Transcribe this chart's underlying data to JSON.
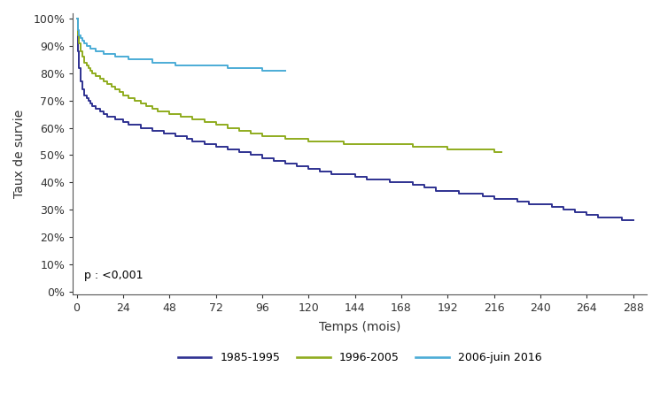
{
  "title": "",
  "xlabel": "Temps (mois)",
  "ylabel": "Taux de survie",
  "xlim": [
    -2,
    295
  ],
  "ylim": [
    -0.01,
    1.02
  ],
  "xticks": [
    0,
    24,
    48,
    72,
    96,
    120,
    144,
    168,
    192,
    216,
    240,
    264,
    288
  ],
  "yticks": [
    0.0,
    0.1,
    0.2,
    0.3,
    0.4,
    0.5,
    0.6,
    0.7,
    0.8,
    0.9,
    1.0
  ],
  "p_text": "p : <0,001",
  "background_color": "#ffffff",
  "series": {
    "1985-1995": {
      "color": "#2e3191",
      "linewidth": 1.4,
      "times": [
        0,
        0.5,
        1,
        2,
        3,
        4,
        5,
        6,
        7,
        8,
        9,
        10,
        11,
        12,
        14,
        16,
        18,
        20,
        22,
        24,
        27,
        30,
        33,
        36,
        39,
        42,
        45,
        48,
        51,
        54,
        57,
        60,
        66,
        72,
        78,
        84,
        90,
        96,
        102,
        108,
        114,
        120,
        126,
        132,
        138,
        144,
        150,
        156,
        162,
        168,
        174,
        180,
        186,
        192,
        198,
        204,
        210,
        216,
        222,
        228,
        234,
        240,
        246,
        252,
        258,
        264,
        270,
        276,
        282,
        288
      ],
      "survival": [
        1.0,
        0.88,
        0.82,
        0.77,
        0.74,
        0.72,
        0.71,
        0.7,
        0.69,
        0.68,
        0.68,
        0.67,
        0.67,
        0.66,
        0.65,
        0.64,
        0.64,
        0.63,
        0.63,
        0.62,
        0.61,
        0.61,
        0.6,
        0.6,
        0.59,
        0.59,
        0.58,
        0.58,
        0.57,
        0.57,
        0.56,
        0.55,
        0.54,
        0.53,
        0.52,
        0.51,
        0.5,
        0.49,
        0.48,
        0.47,
        0.46,
        0.45,
        0.44,
        0.43,
        0.43,
        0.42,
        0.41,
        0.41,
        0.4,
        0.4,
        0.39,
        0.38,
        0.37,
        0.37,
        0.36,
        0.36,
        0.35,
        0.34,
        0.34,
        0.33,
        0.32,
        0.32,
        0.31,
        0.3,
        0.29,
        0.28,
        0.27,
        0.27,
        0.26,
        0.26
      ]
    },
    "1996-2005": {
      "color": "#8fac1e",
      "linewidth": 1.4,
      "times": [
        0,
        0.5,
        1,
        2,
        3,
        4,
        5,
        6,
        7,
        8,
        9,
        10,
        11,
        12,
        14,
        16,
        18,
        20,
        22,
        24,
        27,
        30,
        33,
        36,
        39,
        42,
        45,
        48,
        54,
        60,
        66,
        72,
        78,
        84,
        90,
        96,
        102,
        108,
        114,
        120,
        126,
        132,
        138,
        144,
        150,
        156,
        162,
        168,
        174,
        180,
        186,
        192,
        198,
        204,
        210,
        216,
        220
      ],
      "survival": [
        1.0,
        0.94,
        0.91,
        0.88,
        0.86,
        0.84,
        0.83,
        0.82,
        0.81,
        0.8,
        0.8,
        0.79,
        0.79,
        0.78,
        0.77,
        0.76,
        0.75,
        0.74,
        0.73,
        0.72,
        0.71,
        0.7,
        0.69,
        0.68,
        0.67,
        0.66,
        0.66,
        0.65,
        0.64,
        0.63,
        0.62,
        0.61,
        0.6,
        0.59,
        0.58,
        0.57,
        0.57,
        0.56,
        0.56,
        0.55,
        0.55,
        0.55,
        0.54,
        0.54,
        0.54,
        0.54,
        0.54,
        0.54,
        0.53,
        0.53,
        0.53,
        0.52,
        0.52,
        0.52,
        0.52,
        0.51,
        0.51
      ]
    },
    "2006-juin 2016": {
      "color": "#4bacd6",
      "linewidth": 1.4,
      "times": [
        0,
        0.5,
        1,
        2,
        3,
        4,
        5,
        6,
        7,
        8,
        9,
        10,
        11,
        12,
        14,
        16,
        18,
        20,
        22,
        24,
        27,
        30,
        33,
        36,
        39,
        42,
        45,
        48,
        51,
        54,
        57,
        60,
        66,
        72,
        78,
        84,
        90,
        96,
        108
      ],
      "survival": [
        1.0,
        0.96,
        0.94,
        0.93,
        0.92,
        0.91,
        0.9,
        0.9,
        0.89,
        0.89,
        0.89,
        0.88,
        0.88,
        0.88,
        0.87,
        0.87,
        0.87,
        0.86,
        0.86,
        0.86,
        0.85,
        0.85,
        0.85,
        0.85,
        0.84,
        0.84,
        0.84,
        0.84,
        0.83,
        0.83,
        0.83,
        0.83,
        0.83,
        0.83,
        0.82,
        0.82,
        0.82,
        0.81,
        0.81
      ]
    }
  }
}
